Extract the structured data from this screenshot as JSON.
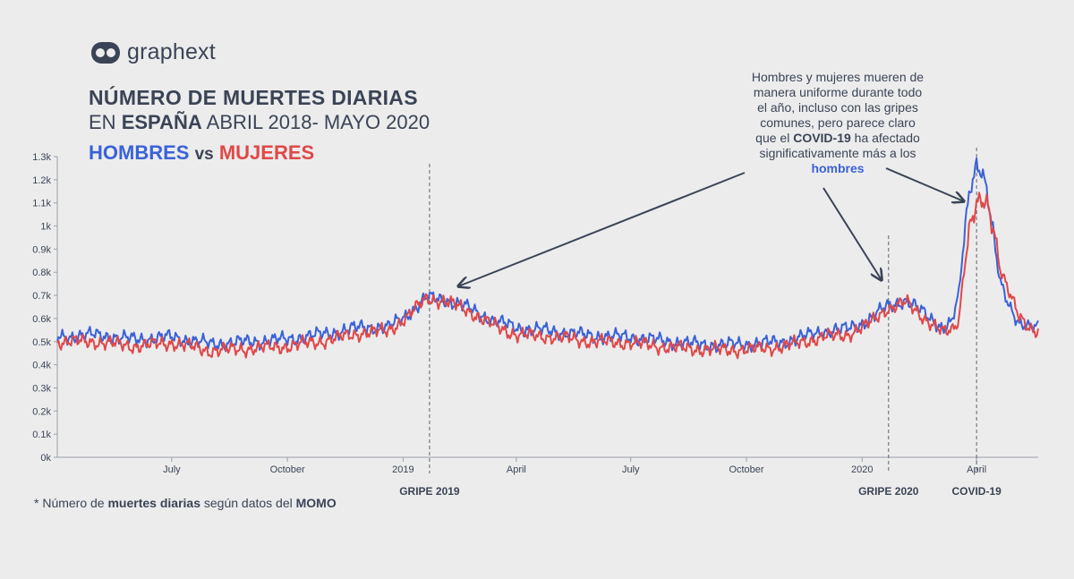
{
  "brand": {
    "name": "graphext",
    "logo_icon": "graphext-logo-icon"
  },
  "header": {
    "title_line1": "NÚMERO DE MUERTES DIARIAS",
    "title_line2_pre": "EN ",
    "title_line2_bold": "ESPAÑA",
    "title_line2_post": " ABRIL 2018- MAYO 2020",
    "series_a": "HOMBRES",
    "vs": "vs",
    "series_b": "MUJERES"
  },
  "annotation": {
    "part1": "Hombres y mujeres mueren de manera uniforme durante todo el año, incluso con las gripes comunes, pero parece claro que el ",
    "bold1": "COVID-19",
    "part2": " ha afectado significativamente más a los ",
    "bold2": "hombres"
  },
  "footnote": {
    "pre": "* Número de ",
    "bold1": "muertes diarias",
    "mid": " según datos del ",
    "bold2": "MOMO"
  },
  "colors": {
    "men": "#3a62d8",
    "women": "#e04848",
    "text": "#3b4456",
    "background": "#ececec"
  },
  "chart_data": {
    "type": "line",
    "x_range": [
      "2018-04-01",
      "2020-05-20"
    ],
    "ylim": [
      0,
      1300
    ],
    "y_ticks": [
      {
        "value": 0,
        "label": "0k"
      },
      {
        "value": 100,
        "label": "0.1k"
      },
      {
        "value": 200,
        "label": "0.2k"
      },
      {
        "value": 300,
        "label": "0.3k"
      },
      {
        "value": 400,
        "label": "0.4k"
      },
      {
        "value": 500,
        "label": "0.5k"
      },
      {
        "value": 600,
        "label": "0.6k"
      },
      {
        "value": 700,
        "label": "0.7k"
      },
      {
        "value": 800,
        "label": "0.8k"
      },
      {
        "value": 900,
        "label": "0.9k"
      },
      {
        "value": 1000,
        "label": "1k"
      },
      {
        "value": 1100,
        "label": "1.1k"
      },
      {
        "value": 1200,
        "label": "1.2k"
      },
      {
        "value": 1300,
        "label": "1.3k"
      }
    ],
    "x_ticks": [
      {
        "date": "2018-07-01",
        "label": "July"
      },
      {
        "date": "2018-10-01",
        "label": "October"
      },
      {
        "date": "2019-01-01",
        "label": "2019"
      },
      {
        "date": "2019-04-01",
        "label": "April"
      },
      {
        "date": "2019-07-01",
        "label": "July"
      },
      {
        "date": "2019-10-01",
        "label": "October"
      },
      {
        "date": "2020-01-01",
        "label": "2020"
      },
      {
        "date": "2020-04-01",
        "label": "April"
      }
    ],
    "events": [
      {
        "date": "2019-01-22",
        "label": "GRIPE 2019"
      },
      {
        "date": "2020-01-22",
        "label": "GRIPE 2020"
      },
      {
        "date": "2020-04-01",
        "label": "COVID-19"
      }
    ],
    "series": [
      {
        "name": "HOMBRES",
        "x": [
          "2018-04-01",
          "2018-05-01",
          "2018-06-01",
          "2018-07-01",
          "2018-08-01",
          "2018-09-01",
          "2018-10-01",
          "2018-11-01",
          "2018-12-01",
          "2018-12-20",
          "2019-01-05",
          "2019-01-20",
          "2019-02-05",
          "2019-02-20",
          "2019-03-10",
          "2019-04-01",
          "2019-05-01",
          "2019-06-01",
          "2019-07-01",
          "2019-08-01",
          "2019-09-01",
          "2019-10-01",
          "2019-11-01",
          "2019-12-01",
          "2019-12-20",
          "2020-01-05",
          "2020-01-20",
          "2020-02-05",
          "2020-02-20",
          "2020-03-05",
          "2020-03-12",
          "2020-03-18",
          "2020-03-22",
          "2020-03-27",
          "2020-04-01",
          "2020-04-05",
          "2020-04-10",
          "2020-04-15",
          "2020-04-20",
          "2020-04-28",
          "2020-05-05",
          "2020-05-12",
          "2020-05-20"
        ],
        "values": [
          520,
          530,
          510,
          520,
          490,
          500,
          510,
          535,
          565,
          560,
          620,
          690,
          680,
          650,
          600,
          560,
          545,
          525,
          520,
          500,
          485,
          490,
          500,
          545,
          555,
          590,
          650,
          680,
          620,
          560,
          580,
          700,
          950,
          1180,
          1270,
          1250,
          1120,
          920,
          750,
          650,
          580,
          560,
          560
        ]
      },
      {
        "name": "MUJERES",
        "x": [
          "2018-04-01",
          "2018-05-01",
          "2018-06-01",
          "2018-07-01",
          "2018-08-01",
          "2018-09-01",
          "2018-10-01",
          "2018-11-01",
          "2018-12-01",
          "2018-12-20",
          "2019-01-05",
          "2019-01-20",
          "2019-02-05",
          "2019-02-20",
          "2019-03-10",
          "2019-04-01",
          "2019-05-01",
          "2019-06-01",
          "2019-07-01",
          "2019-08-01",
          "2019-09-01",
          "2019-10-01",
          "2019-11-01",
          "2019-12-01",
          "2019-12-20",
          "2020-01-05",
          "2020-01-20",
          "2020-02-05",
          "2020-02-20",
          "2020-03-05",
          "2020-03-12",
          "2020-03-18",
          "2020-03-22",
          "2020-03-27",
          "2020-04-01",
          "2020-04-05",
          "2020-04-10",
          "2020-04-15",
          "2020-04-20",
          "2020-04-28",
          "2020-05-05",
          "2020-05-12",
          "2020-05-20"
        ],
        "values": [
          500,
          500,
          480,
          495,
          460,
          470,
          480,
          505,
          540,
          545,
          610,
          690,
          670,
          640,
          580,
          530,
          520,
          500,
          495,
          475,
          465,
          465,
          480,
          520,
          530,
          570,
          640,
          670,
          600,
          540,
          545,
          600,
          820,
          1010,
          1080,
          1100,
          1080,
          980,
          820,
          700,
          600,
          560,
          550
        ]
      }
    ]
  }
}
